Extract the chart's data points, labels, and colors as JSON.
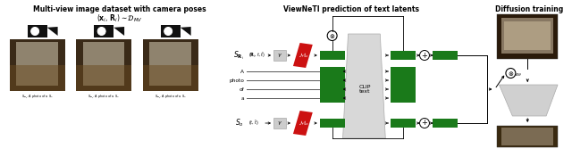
{
  "title_left": "Multi-view image dataset with camera poses",
  "title_mid": "ViewNeTI prediction of text latents",
  "title_right": "Diffusion training",
  "bg_color": "#ffffff",
  "text_color": "#000000",
  "green_color": "#1a7a1a",
  "red_color": "#cc1111",
  "gray_light": "#d0d0d0",
  "gray_med": "#b0b0b0",
  "black": "#000000",
  "cam_color": "#111111"
}
